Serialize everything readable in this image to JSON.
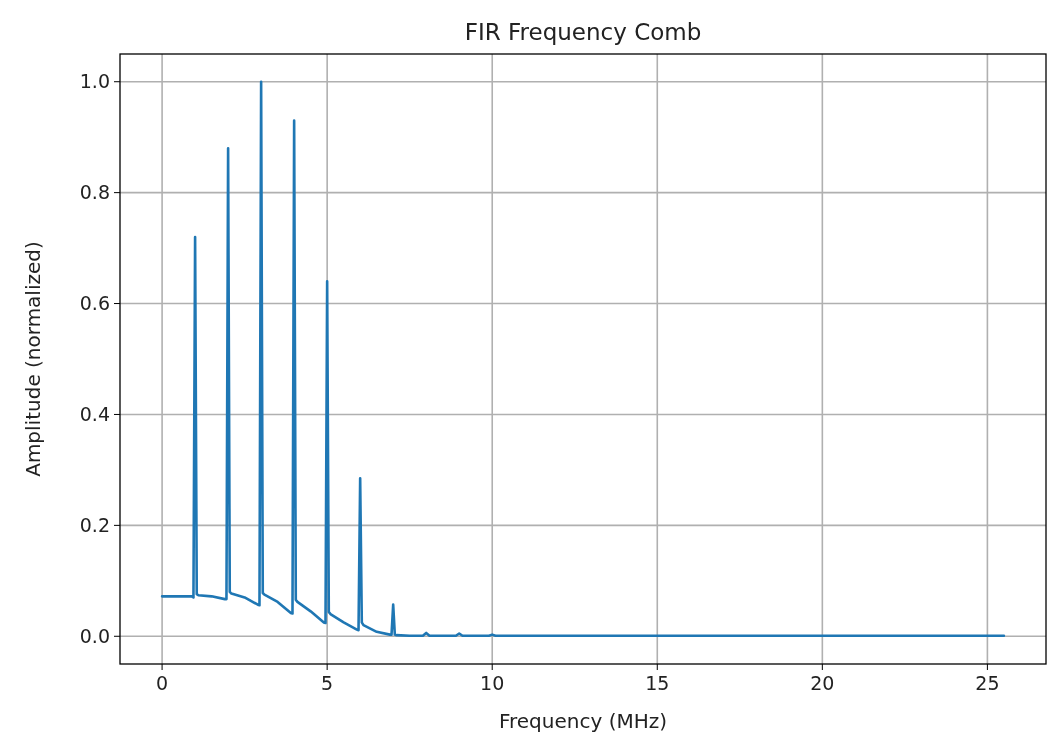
{
  "chart_data": {
    "type": "line",
    "title": "FIR Frequency Comb",
    "xlabel": "Frequency (MHz)",
    "ylabel": "Amplitude (normalized)",
    "series": [
      {
        "color": "#1f77b4",
        "x": [
          0,
          0.5,
          0.9,
          0.95,
          1,
          1.05,
          1.1,
          1.5,
          1.9,
          1.95,
          2,
          2.05,
          2.1,
          2.5,
          2.9,
          2.95,
          3,
          3.05,
          3.1,
          3.5,
          3.9,
          3.95,
          4,
          4.05,
          4.1,
          4.5,
          4.9,
          4.95,
          5,
          5.05,
          5.1,
          5.5,
          5.9,
          5.95,
          6,
          6.05,
          6.1,
          6.5,
          6.9,
          6.95,
          7,
          7.05,
          7.1,
          7.5,
          7.9,
          8,
          8.1,
          8.9,
          9,
          9.1,
          9.9,
          10,
          10.1,
          15,
          20,
          25.5
        ],
        "values": [
          0.072,
          0.072,
          0.072,
          0.07,
          0.72,
          0.076,
          0.074,
          0.072,
          0.067,
          0.067,
          0.88,
          0.08,
          0.077,
          0.07,
          0.057,
          0.056,
          1.0,
          0.078,
          0.075,
          0.062,
          0.042,
          0.041,
          0.93,
          0.066,
          0.062,
          0.045,
          0.025,
          0.024,
          0.64,
          0.044,
          0.04,
          0.025,
          0.012,
          0.011,
          0.285,
          0.025,
          0.02,
          0.008,
          0.003,
          0.003,
          0.057,
          0.003,
          0.002,
          0.001,
          0.001,
          0.006,
          0.001,
          0.001,
          0.005,
          0.001,
          0.001,
          0.003,
          0.001,
          0.001,
          0.001,
          0.001
        ]
      }
    ],
    "xlim": [
      -1.275,
      26.775
    ],
    "ylim": [
      -0.05,
      1.05
    ],
    "xticks": [
      0,
      5,
      10,
      15,
      20,
      25
    ],
    "yticks": [
      {
        "value": 0,
        "label": "0.0"
      },
      {
        "value": 0.2,
        "label": "0.2"
      },
      {
        "value": 0.4,
        "label": "0.4"
      },
      {
        "value": 0.6,
        "label": "0.6"
      },
      {
        "value": 0.8,
        "label": "0.8"
      },
      {
        "value": 1,
        "label": "1.0"
      }
    ],
    "grid": true,
    "marker": "none",
    "line_style": "solid"
  }
}
